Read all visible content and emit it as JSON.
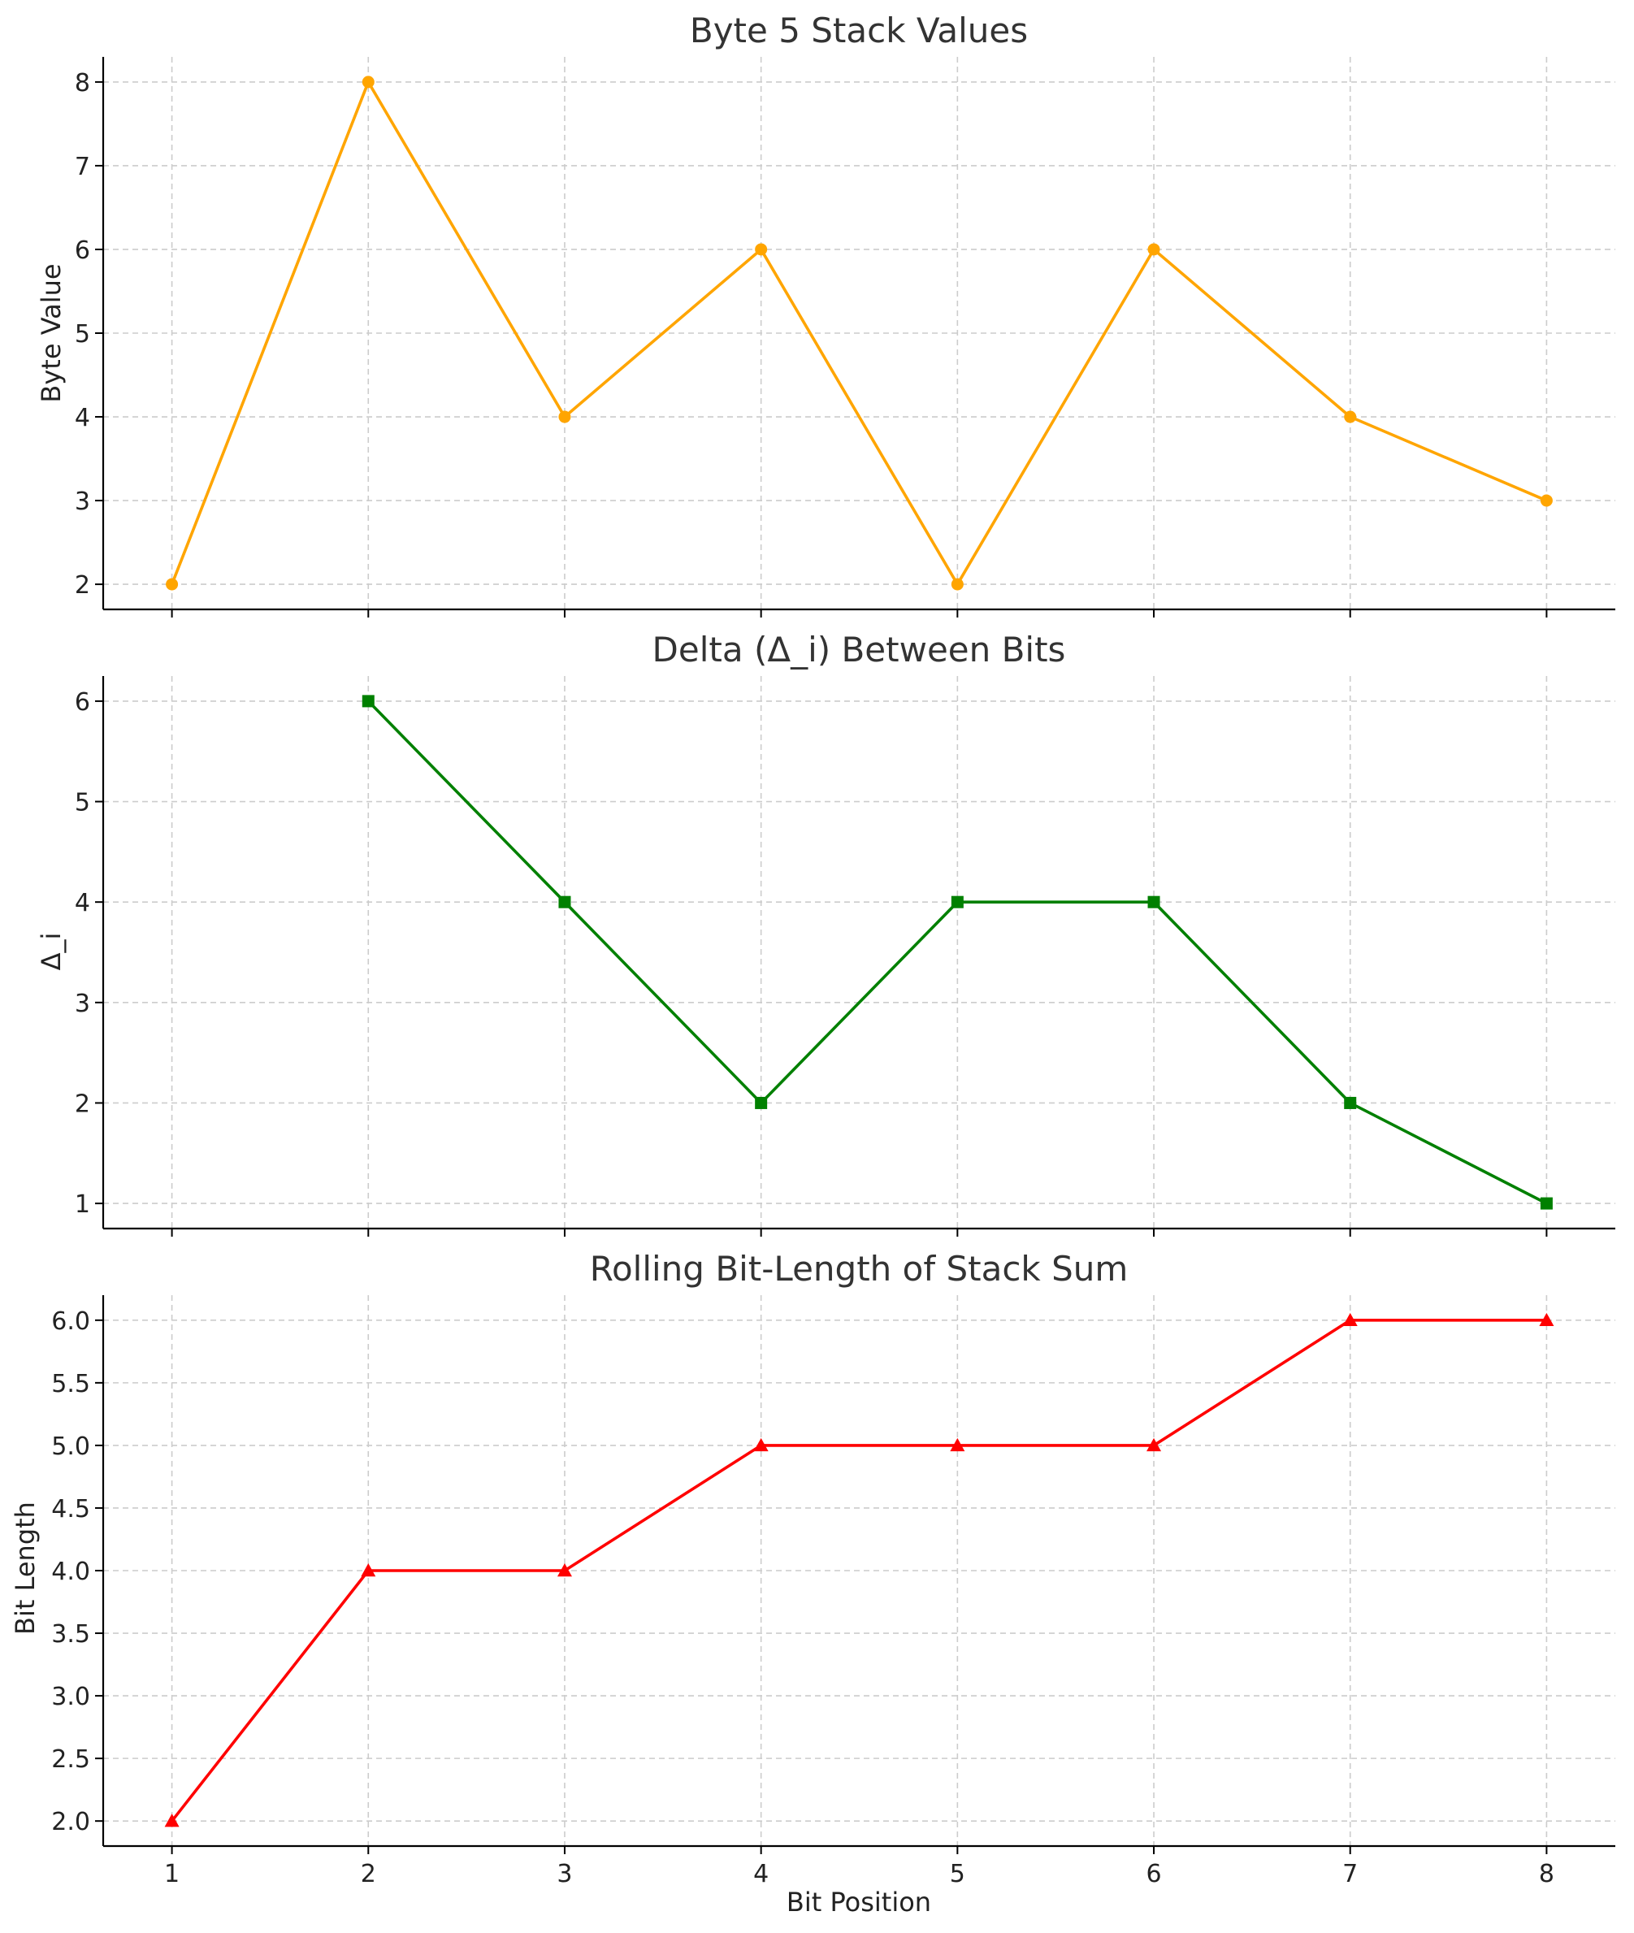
{
  "chart_data": [
    {
      "type": "line",
      "title": "Byte 5 Stack Values",
      "ylabel": "Byte Value",
      "xlabel": "",
      "x": [
        1,
        2,
        3,
        4,
        5,
        6,
        7,
        8
      ],
      "series": [
        {
          "values": [
            2,
            8,
            4,
            6,
            2,
            6,
            4,
            3
          ],
          "color": "#FFA500",
          "marker": "circle"
        }
      ],
      "xlim": [
        0.65,
        8.35
      ],
      "ylim": [
        1.7,
        8.3
      ],
      "xticks": [
        1,
        2,
        3,
        4,
        5,
        6,
        7,
        8
      ],
      "xtick_labels": [],
      "yticks": [
        2,
        3,
        4,
        5,
        6,
        7,
        8
      ],
      "ytick_labels": [
        "2",
        "3",
        "4",
        "5",
        "6",
        "7",
        "8"
      ],
      "grid": true
    },
    {
      "type": "line",
      "title": "Delta (Δ_i) Between Bits",
      "ylabel": "Δ_i",
      "xlabel": "",
      "x": [
        2,
        3,
        4,
        5,
        6,
        7,
        8
      ],
      "series": [
        {
          "values": [
            6,
            4,
            2,
            4,
            4,
            2,
            1
          ],
          "color": "#008000",
          "marker": "square"
        }
      ],
      "xlim": [
        0.65,
        8.35
      ],
      "ylim": [
        0.75,
        6.25
      ],
      "xticks": [
        1,
        2,
        3,
        4,
        5,
        6,
        7,
        8
      ],
      "xtick_labels": [],
      "yticks": [
        1,
        2,
        3,
        4,
        5,
        6
      ],
      "ytick_labels": [
        "1",
        "2",
        "3",
        "4",
        "5",
        "6"
      ],
      "grid": true
    },
    {
      "type": "line",
      "title": "Rolling Bit-Length of Stack Sum",
      "ylabel": "Bit Length",
      "xlabel": "Bit Position",
      "x": [
        1,
        2,
        3,
        4,
        5,
        6,
        7,
        8
      ],
      "series": [
        {
          "values": [
            2,
            4,
            4,
            5,
            5,
            5,
            6,
            6
          ],
          "color": "#FF0000",
          "marker": "triangle"
        }
      ],
      "xlim": [
        0.65,
        8.35
      ],
      "ylim": [
        1.8,
        6.2
      ],
      "xticks": [
        1,
        2,
        3,
        4,
        5,
        6,
        7,
        8
      ],
      "xtick_labels": [
        "1",
        "2",
        "3",
        "4",
        "5",
        "6",
        "7",
        "8"
      ],
      "yticks": [
        2.0,
        2.5,
        3.0,
        3.5,
        4.0,
        4.5,
        5.0,
        5.5,
        6.0
      ],
      "ytick_labels": [
        "2.0",
        "2.5",
        "3.0",
        "3.5",
        "4.0",
        "4.5",
        "5.0",
        "5.5",
        "6.0"
      ],
      "grid": true
    }
  ]
}
